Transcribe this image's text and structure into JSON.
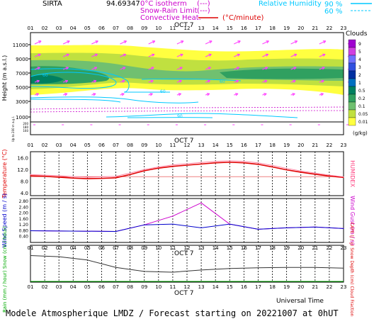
{
  "header": {
    "station": "SIRTA",
    "coords": "94.69347",
    "legend_iso": "0°C isotherm",
    "legend_iso_sym": "(---)",
    "legend_snow": "Snow-Rain Limit",
    "legend_snow_sym": "(---)",
    "legend_conv": "Convective Heat.",
    "legend_conv_unit": "(°C/minute)",
    "rh_label": "Relative Humidity",
    "rh_90": "90 %",
    "rh_60": "60 %"
  },
  "date_label": "OCT  7",
  "hours": [
    "01",
    "02",
    "03",
    "04",
    "05",
    "06",
    "07",
    "08",
    "09",
    "10",
    "11",
    "12",
    "13",
    "14",
    "15",
    "16",
    "17",
    "18",
    "19",
    "20",
    "21",
    "22",
    "23"
  ],
  "footer": {
    "universal_time": "Universal Time",
    "forecast": "Modele Atmospherique LMDZ / Forecast starting on 20221007 at 0hUT"
  },
  "colors": {
    "temperature": "#e00000",
    "humidex": "#ff80a0",
    "wind_speed": "#0000cc",
    "wind_gust": "#cc00cc",
    "rain": "#00aa00",
    "snow": "#0000cc",
    "cape": "#dd0000",
    "cloud_fraction": "#333333",
    "iso": "#cc00cc",
    "rh": "#00c8ff"
  },
  "clouds_legend": {
    "title": "Clouds",
    "unit": "(g/kg)",
    "levels": [
      "9",
      "5",
      "4",
      "3",
      "2",
      "1",
      "0.5",
      "0.2",
      "0.1",
      "0.05",
      "0.01"
    ],
    "colors": [
      "#a000d0",
      "#d040e0",
      "#7070ff",
      "#3050e0",
      "#0030a0",
      "#0070c0",
      "#008060",
      "#30a060",
      "#70c070",
      "#c0e040",
      "#ffff40"
    ]
  },
  "chart_data": [
    {
      "type": "heatmap",
      "ylabel": "Height  (m a.s.l.)",
      "ylabel_low": "Up to 200 m a.g.l.",
      "yticks": [
        "11000",
        "9000",
        "7000",
        "5000",
        "3000",
        "1000"
      ],
      "yticks_low": [
        "200",
        "180",
        "160",
        "140",
        "120",
        "100",
        "80",
        "60",
        "40",
        "20",
        "10"
      ],
      "rh_contour_labels": [
        "60",
        "60",
        "60",
        "90"
      ],
      "description_level": "cloud water"
    },
    {
      "type": "line",
      "ylabel": "Temperature (°C)",
      "ylabel_right": "HUMIDEX",
      "yticks": [
        "16.0",
        "12.0",
        "8.0",
        "4.0"
      ],
      "ylim": [
        3,
        18
      ],
      "x": [
        "01",
        "02",
        "03",
        "04",
        "05",
        "06",
        "07",
        "08",
        "09",
        "10",
        "11",
        "12",
        "13",
        "14",
        "15",
        "16",
        "17",
        "18",
        "19",
        "20",
        "21",
        "22",
        "23"
      ],
      "series": [
        {
          "name": "Temperature",
          "values": [
            9.8,
            9.6,
            9.3,
            9.0,
            8.8,
            8.9,
            9.1,
            10.2,
            11.5,
            12.4,
            13.0,
            13.4,
            13.8,
            14.2,
            14.4,
            14.2,
            13.7,
            12.8,
            11.8,
            11.0,
            10.3,
            9.7,
            9.2
          ]
        },
        {
          "name": "HUMIDEX",
          "values": [
            10.2,
            10.0,
            9.8,
            9.5,
            9.3,
            9.4,
            9.6,
            10.7,
            11.9,
            12.8,
            13.5,
            13.9,
            14.3,
            14.7,
            14.9,
            14.7,
            14.2,
            13.3,
            12.3,
            11.4,
            10.7,
            10.0,
            9.4
          ]
        }
      ]
    },
    {
      "type": "line",
      "ylabel": "Wind Speed (m / s)",
      "ylabel_right": "Wind Gust (m / s)",
      "yticks": [
        "2.80",
        "2.40",
        "2.00",
        "1.60",
        "1.20",
        "0.80",
        "0.40"
      ],
      "ylim": [
        0,
        3.0
      ],
      "x": [
        "01",
        "07",
        "09",
        "11",
        "13",
        "15",
        "17",
        "19",
        "21",
        "23"
      ],
      "series": [
        {
          "name": "Wind Speed",
          "values": [
            0.8,
            0.75,
            1.2,
            1.25,
            1.0,
            1.25,
            0.9,
            1.0,
            1.05,
            0.95
          ]
        },
        {
          "name": "Wind Gust",
          "values": [
            0.8,
            0.75,
            1.2,
            1.8,
            2.7,
            1.25,
            0.9,
            1.0,
            1.05,
            0.95
          ]
        }
      ]
    },
    {
      "type": "line",
      "ylabel": "Rain (mm / hour) Snow (cm / hour)",
      "ylabel_right": "CAPE (J / g) Snow Depth (cm) Cloud Fraction",
      "x": [
        "01",
        "03",
        "05",
        "07",
        "09",
        "11",
        "13",
        "15",
        "17",
        "19",
        "21",
        "23"
      ],
      "series": [
        {
          "name": "Cloud Fraction",
          "values": [
            0.72,
            0.69,
            0.6,
            0.4,
            0.29,
            0.27,
            0.33,
            0.37,
            0.39,
            0.4,
            0.4,
            0.38
          ]
        }
      ]
    }
  ]
}
